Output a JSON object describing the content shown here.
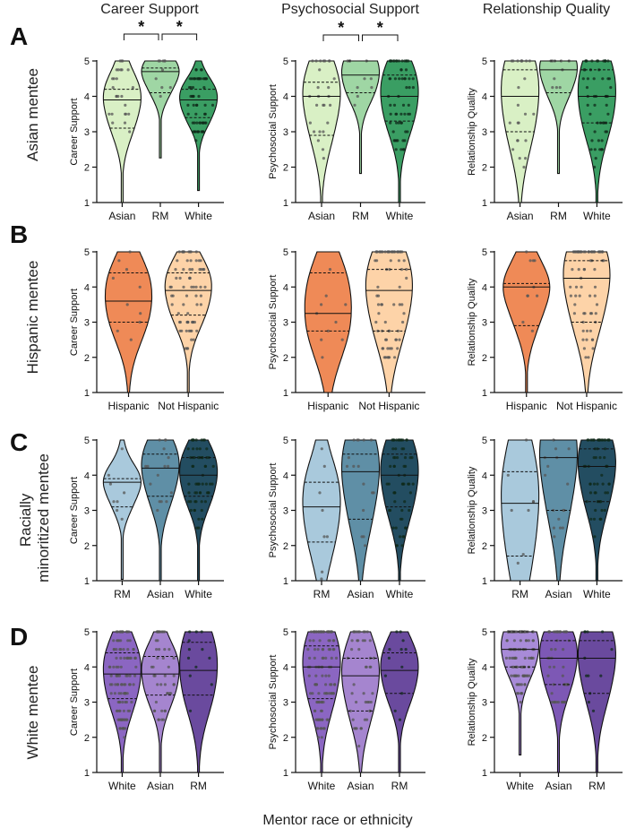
{
  "figure": {
    "x_axis_label": "Mentor race or ethnicity",
    "column_titles": [
      "Career Support",
      "Psychosocial Support",
      "Relationship Quality"
    ],
    "rows": [
      {
        "panel": "A",
        "label": "Asian mentee"
      },
      {
        "panel": "B",
        "label": "Hispanic mentee"
      },
      {
        "panel": "C",
        "label": "Racially minoritized mentee"
      },
      {
        "panel": "D",
        "label": "White mentee"
      }
    ],
    "significance_symbol": "*"
  },
  "chart_data": [
    {
      "type": "violin",
      "panel": "A",
      "row": "Asian mentee",
      "title": "Career Support",
      "ylabel": "Career Support",
      "ylim": [
        1,
        5
      ],
      "yticks": [
        1,
        2,
        3,
        4,
        5
      ],
      "categories": [
        "Asian",
        "RM",
        "White"
      ],
      "colors": [
        "#d9f0c5",
        "#9fd6a4",
        "#3a9e63"
      ],
      "quartiles": [
        {
          "q1": 3.1,
          "median": 3.9,
          "q3": 4.2
        },
        {
          "q1": 4.1,
          "median": 4.7,
          "q3": 4.8
        },
        {
          "q1": 3.4,
          "median": 3.9,
          "q3": 4.2
        }
      ],
      "n": [
        26,
        10,
        60
      ],
      "significance": [
        {
          "from": 0,
          "to": 1,
          "label": "*"
        },
        {
          "from": 1,
          "to": 2,
          "label": "*"
        }
      ]
    },
    {
      "type": "violin",
      "panel": "A",
      "row": "Asian mentee",
      "title": "Psychosocial Support",
      "ylabel": "Psychosocial Support",
      "ylim": [
        1,
        5
      ],
      "yticks": [
        1,
        2,
        3,
        4,
        5
      ],
      "categories": [
        "Asian",
        "RM",
        "White"
      ],
      "colors": [
        "#d9f0c5",
        "#9fd6a4",
        "#3a9e63"
      ],
      "quartiles": [
        {
          "q1": 2.9,
          "median": 4.0,
          "q3": 4.4
        },
        {
          "q1": 4.1,
          "median": 4.6,
          "q3": 5.0
        },
        {
          "q1": 3.3,
          "median": 4.0,
          "q3": 4.6
        }
      ],
      "n": [
        26,
        10,
        60
      ],
      "significance": [
        {
          "from": 0,
          "to": 1,
          "label": "*"
        },
        {
          "from": 1,
          "to": 2,
          "label": "*"
        }
      ]
    },
    {
      "type": "violin",
      "panel": "A",
      "row": "Asian mentee",
      "title": "Relationship Quality",
      "ylabel": "Relationship Quality",
      "ylim": [
        1,
        5
      ],
      "yticks": [
        1,
        2,
        3,
        4,
        5
      ],
      "categories": [
        "Asian",
        "RM",
        "White"
      ],
      "colors": [
        "#d9f0c5",
        "#9fd6a4",
        "#3a9e63"
      ],
      "quartiles": [
        {
          "q1": 3.0,
          "median": 4.0,
          "q3": 4.75
        },
        {
          "q1": 4.1,
          "median": 4.75,
          "q3": 5.0
        },
        {
          "q1": 3.25,
          "median": 4.0,
          "q3": 4.75
        }
      ],
      "n": [
        24,
        10,
        55
      ],
      "significance": []
    },
    {
      "type": "violin",
      "panel": "B",
      "row": "Hispanic mentee",
      "title": "Career Support",
      "ylabel": "Career Support",
      "ylim": [
        1,
        5
      ],
      "yticks": [
        1,
        2,
        3,
        4,
        5
      ],
      "categories": [
        "Hispanic",
        "Not Hispanic"
      ],
      "colors": [
        "#ef8a57",
        "#fdd3a8"
      ],
      "quartiles": [
        {
          "q1": 3.0,
          "median": 3.6,
          "q3": 4.4
        },
        {
          "q1": 3.2,
          "median": 3.9,
          "q3": 4.4
        }
      ],
      "n": [
        10,
        70
      ],
      "significance": []
    },
    {
      "type": "violin",
      "panel": "B",
      "row": "Hispanic mentee",
      "title": "Psychosocial Support",
      "ylabel": "Psychosocial Support",
      "ylim": [
        1,
        5
      ],
      "yticks": [
        1,
        2,
        3,
        4,
        5
      ],
      "categories": [
        "Hispanic",
        "Not Hispanic"
      ],
      "colors": [
        "#ef8a57",
        "#fdd3a8"
      ],
      "quartiles": [
        {
          "q1": 2.75,
          "median": 3.25,
          "q3": 4.4
        },
        {
          "q1": 2.75,
          "median": 3.9,
          "q3": 4.5
        }
      ],
      "n": [
        10,
        70
      ],
      "significance": []
    },
    {
      "type": "violin",
      "panel": "B",
      "row": "Hispanic mentee",
      "title": "Relationship Quality",
      "ylabel": "Relationship Quality",
      "ylim": [
        1,
        5
      ],
      "yticks": [
        1,
        2,
        3,
        4,
        5
      ],
      "categories": [
        "Hispanic",
        "Not Hispanic"
      ],
      "colors": [
        "#ef8a57",
        "#fdd3a8"
      ],
      "quartiles": [
        {
          "q1": 2.9,
          "median": 4.0,
          "q3": 4.1
        },
        {
          "q1": 3.0,
          "median": 4.25,
          "q3": 4.75
        }
      ],
      "n": [
        10,
        70
      ],
      "significance": []
    },
    {
      "type": "violin",
      "panel": "C",
      "row": "Racially minoritized mentee",
      "title": "Career Support",
      "ylabel": "Career Support",
      "ylim": [
        1,
        5
      ],
      "yticks": [
        1,
        2,
        3,
        4,
        5
      ],
      "categories": [
        "RM",
        "Asian",
        "White"
      ],
      "colors": [
        "#a9c9dc",
        "#5f8fa6",
        "#234d61"
      ],
      "quartiles": [
        {
          "q1": 3.1,
          "median": 3.8,
          "q3": 3.9
        },
        {
          "q1": 3.4,
          "median": 4.2,
          "q3": 4.6
        },
        {
          "q1": 3.4,
          "median": 4.0,
          "q3": 4.5
        }
      ],
      "n": [
        8,
        16,
        60
      ],
      "significance": []
    },
    {
      "type": "violin",
      "panel": "C",
      "row": "Racially minoritized mentee",
      "title": "Psychosocial Support",
      "ylabel": "Psychosocial Support",
      "ylim": [
        1,
        5
      ],
      "yticks": [
        1,
        2,
        3,
        4,
        5
      ],
      "categories": [
        "RM",
        "Asian",
        "White"
      ],
      "colors": [
        "#a9c9dc",
        "#5f8fa6",
        "#234d61"
      ],
      "quartiles": [
        {
          "q1": 2.1,
          "median": 3.1,
          "q3": 3.8
        },
        {
          "q1": 2.75,
          "median": 4.1,
          "q3": 4.6
        },
        {
          "q1": 3.1,
          "median": 4.0,
          "q3": 4.6
        }
      ],
      "n": [
        8,
        16,
        60
      ],
      "significance": []
    },
    {
      "type": "violin",
      "panel": "C",
      "row": "Racially minoritized mentee",
      "title": "Relationship Quality",
      "ylabel": "Relationship Quality",
      "ylim": [
        1,
        5
      ],
      "yticks": [
        1,
        2,
        3,
        4,
        5
      ],
      "categories": [
        "RM",
        "Asian",
        "White"
      ],
      "colors": [
        "#a9c9dc",
        "#5f8fa6",
        "#234d61"
      ],
      "quartiles": [
        {
          "q1": 1.7,
          "median": 3.2,
          "q3": 4.1
        },
        {
          "q1": 3.0,
          "median": 4.5,
          "q3": 5.0
        },
        {
          "q1": 3.25,
          "median": 4.25,
          "q3": 4.75
        }
      ],
      "n": [
        8,
        16,
        60
      ],
      "significance": []
    },
    {
      "type": "violin",
      "panel": "D",
      "row": "White mentee",
      "title": "Career Support",
      "ylabel": "Career Support",
      "ylim": [
        1,
        5
      ],
      "yticks": [
        1,
        2,
        3,
        4,
        5
      ],
      "categories": [
        "White",
        "Asian",
        "RM"
      ],
      "colors": [
        "#8b66c2",
        "#a585cf",
        "#6a4a9e"
      ],
      "quartiles": [
        {
          "q1": 3.1,
          "median": 3.8,
          "q3": 4.4
        },
        {
          "q1": 3.2,
          "median": 3.8,
          "q3": 4.3
        },
        {
          "q1": 3.2,
          "median": 3.9,
          "q3": 4.7
        }
      ],
      "n": [
        110,
        45,
        12
      ],
      "significance": []
    },
    {
      "type": "violin",
      "panel": "D",
      "row": "White mentee",
      "title": "Psychosocial Support",
      "ylabel": "Psychosocial Support",
      "ylim": [
        1,
        5
      ],
      "yticks": [
        1,
        2,
        3,
        4,
        5
      ],
      "categories": [
        "White",
        "Asian",
        "RM"
      ],
      "colors": [
        "#8b66c2",
        "#a585cf",
        "#6a4a9e"
      ],
      "quartiles": [
        {
          "q1": 3.1,
          "median": 4.0,
          "q3": 4.6
        },
        {
          "q1": 2.75,
          "median": 3.75,
          "q3": 4.25
        },
        {
          "q1": 3.25,
          "median": 3.9,
          "q3": 4.4
        }
      ],
      "n": [
        110,
        45,
        12
      ],
      "significance": []
    },
    {
      "type": "violin",
      "panel": "D",
      "row": "White mentee",
      "title": "Relationship Quality",
      "ylabel": "Relationship Quality",
      "ylim": [
        1,
        5
      ],
      "yticks": [
        1,
        2,
        3,
        4,
        5
      ],
      "categories": [
        "White",
        "Asian",
        "RM"
      ],
      "colors": [
        "#a88bd8",
        "#7d58b5",
        "#6a4a9e"
      ],
      "quartiles": [
        {
          "q1": 4.0,
          "median": 4.5,
          "q3": 5.0
        },
        {
          "q1": 3.5,
          "median": 4.25,
          "q3": 4.75
        },
        {
          "q1": 3.25,
          "median": 4.25,
          "q3": 4.75
        }
      ],
      "n": [
        110,
        45,
        12
      ],
      "significance": []
    }
  ]
}
